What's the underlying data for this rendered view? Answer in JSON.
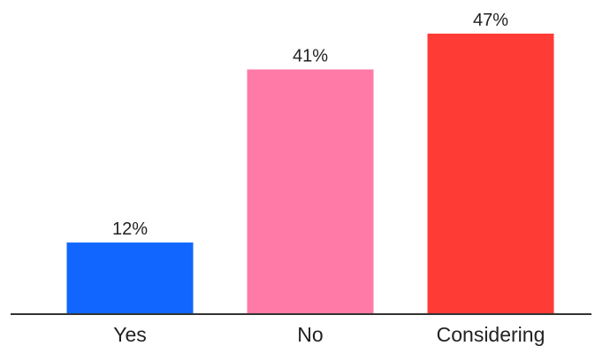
{
  "chart_data": {
    "type": "bar",
    "categories": [
      "Yes",
      "No",
      "Considering"
    ],
    "values": [
      12,
      41,
      47
    ],
    "value_labels": [
      "12%",
      "41%",
      "47%"
    ],
    "colors": [
      "#1166ff",
      "#ff7aa6",
      "#ff3b36"
    ],
    "axis_color": "#333333",
    "ylim": [
      0,
      47
    ],
    "grid": false,
    "legend": "none"
  }
}
